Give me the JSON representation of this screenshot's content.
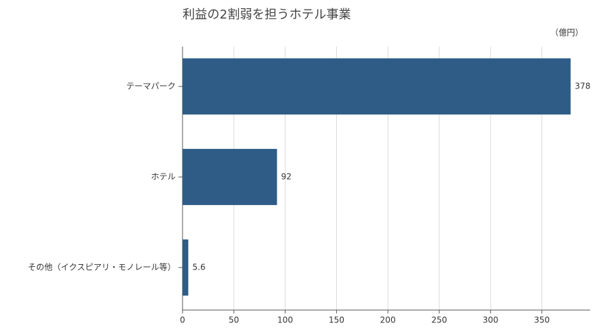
{
  "chart_data": {
    "type": "bar",
    "orientation": "horizontal",
    "title": "利益の2割弱を担うホテル事業",
    "unit_label": "（億円）",
    "categories": [
      "テーマパーク",
      "ホテル",
      "その他（イクスピアリ・モノレール等）"
    ],
    "values": [
      378,
      92,
      5.6
    ],
    "color": "#2e5c87",
    "xlim": [
      0,
      397
    ],
    "xticks": [
      0,
      50,
      100,
      150,
      200,
      250,
      300,
      350
    ],
    "grid": true
  }
}
